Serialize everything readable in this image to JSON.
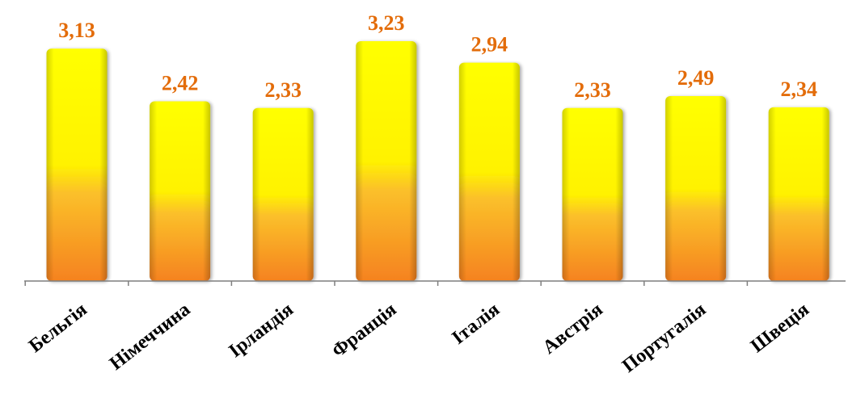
{
  "colors": {
    "bar_top": "#FFFF00",
    "bar_mid": "#FFE41A",
    "bar_bottom": "#F5821F",
    "label": "#E36C0A",
    "axis": "#7F7F7F"
  },
  "chart_data": {
    "type": "bar",
    "title": "",
    "xlabel": "",
    "ylabel": "",
    "categories": [
      "Бельгія",
      "Німеччина",
      "Ірландія",
      "Франція",
      "Італія",
      "Австрія",
      "Португалія",
      "Швеція"
    ],
    "values": [
      3.13,
      2.42,
      2.33,
      3.23,
      2.94,
      2.33,
      2.49,
      2.34
    ],
    "value_labels": [
      "3,13",
      "2,42",
      "2,33",
      "3,23",
      "2,94",
      "2,33",
      "2,49",
      "2,34"
    ],
    "ylim": [
      0,
      3.23
    ],
    "grid": false,
    "legend": "none"
  }
}
